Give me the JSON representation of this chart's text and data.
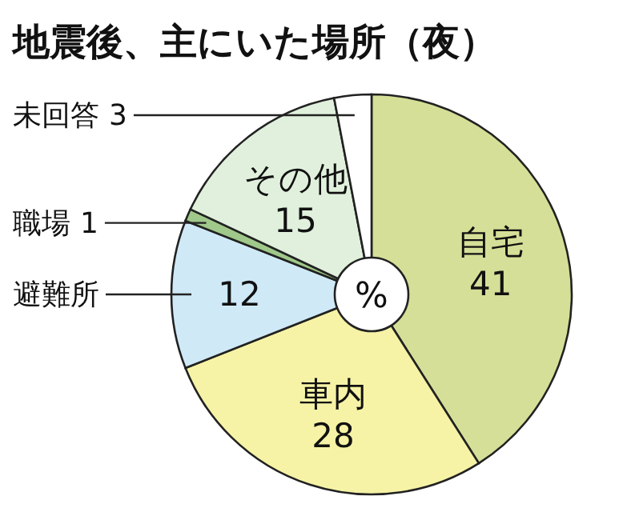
{
  "chart_data": {
    "type": "pie",
    "title": "地震後、主にいた場所（夜）",
    "categories": [
      "自宅",
      "車内",
      "避難所",
      "職場",
      "その他",
      "未回答"
    ],
    "values": [
      41,
      28,
      12,
      1,
      15,
      3
    ],
    "colors": [
      "#d5df97",
      "#f6f3a6",
      "#cfe9f7",
      "#9fc88a",
      "#e0f0dc",
      "#ffffff"
    ],
    "data_labels": true,
    "annotations": [
      "%"
    ]
  }
}
